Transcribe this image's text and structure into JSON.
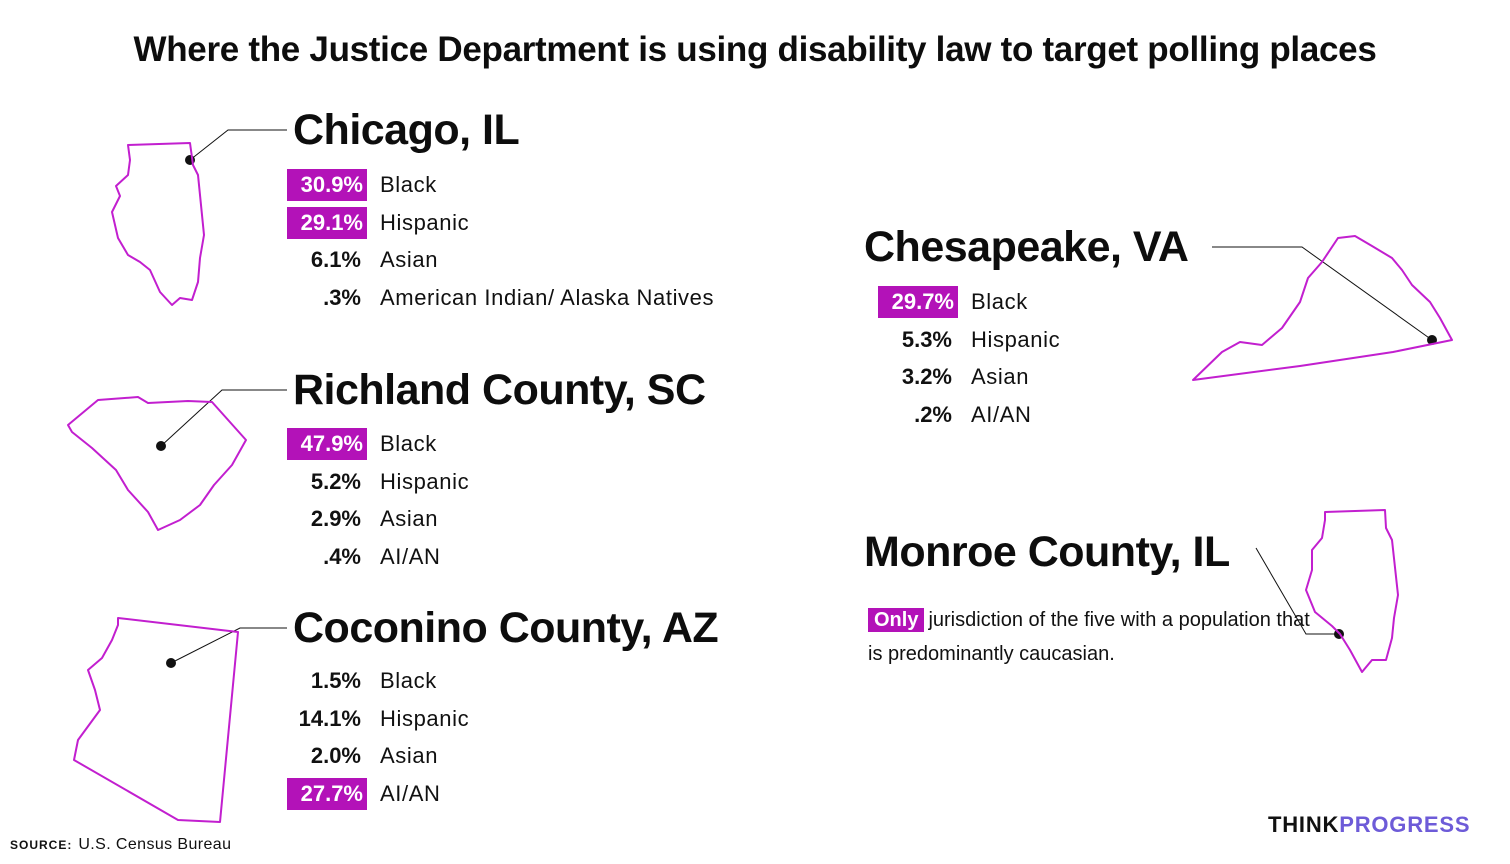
{
  "title": "Where the Justice Department is using disability law to target polling places",
  "colors": {
    "highlight": "#b312b8",
    "outline": "#c21fcf",
    "brand_accent": "#6d5bd8"
  },
  "locations": [
    {
      "name": "Chicago, IL",
      "state_icon": "illinois-outline",
      "stats": [
        {
          "pct": "30.9%",
          "label": "Black",
          "highlight": true
        },
        {
          "pct": "29.1%",
          "label": "Hispanic",
          "highlight": true
        },
        {
          "pct": "6.1%",
          "label": "Asian",
          "highlight": false
        },
        {
          "pct": ".3%",
          "label": "American Indian/ Alaska Natives",
          "highlight": false
        }
      ]
    },
    {
      "name": "Richland County, SC",
      "state_icon": "south-carolina-outline",
      "stats": [
        {
          "pct": "47.9%",
          "label": "Black",
          "highlight": true
        },
        {
          "pct": "5.2%",
          "label": "Hispanic",
          "highlight": false
        },
        {
          "pct": "2.9%",
          "label": "Asian",
          "highlight": false
        },
        {
          "pct": ".4%",
          "label": "AI/AN",
          "highlight": false
        }
      ]
    },
    {
      "name": "Coconino County, AZ",
      "state_icon": "arizona-outline",
      "stats": [
        {
          "pct": "1.5%",
          "label": "Black",
          "highlight": false
        },
        {
          "pct": "14.1%",
          "label": "Hispanic",
          "highlight": false
        },
        {
          "pct": "2.0%",
          "label": "Asian",
          "highlight": false
        },
        {
          "pct": "27.7%",
          "label": "AI/AN",
          "highlight": true
        }
      ]
    },
    {
      "name": "Chesapeake, VA",
      "state_icon": "virginia-outline",
      "stats": [
        {
          "pct": "29.7%",
          "label": "Black",
          "highlight": true
        },
        {
          "pct": "5.3%",
          "label": "Hispanic",
          "highlight": false
        },
        {
          "pct": "3.2%",
          "label": "Asian",
          "highlight": false
        },
        {
          "pct": ".2%",
          "label": "AI/AN",
          "highlight": false
        }
      ]
    },
    {
      "name": "Monroe County, IL",
      "state_icon": "illinois-outline",
      "note_highlight": "Only",
      "note_text": "jurisdiction of the five with a population that is predominantly caucasian."
    }
  ],
  "source": {
    "key": "SOURCE:",
    "value": "U.S. Census Bureau"
  },
  "brand": {
    "part1": "THINK",
    "part2": "PROGRESS"
  }
}
